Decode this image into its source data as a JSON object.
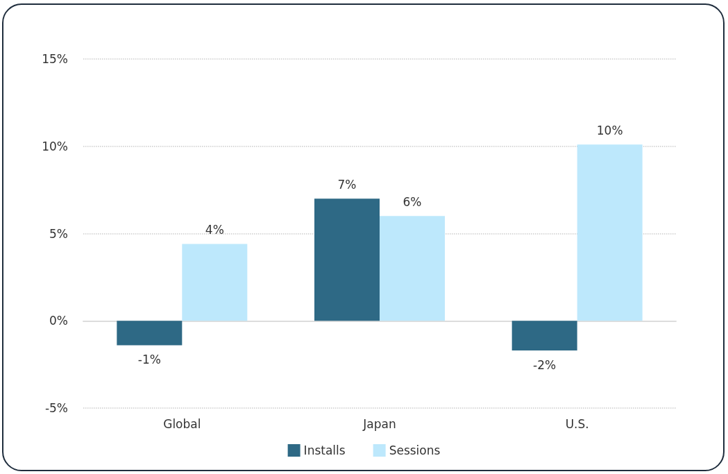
{
  "chart_data": {
    "type": "bar",
    "categories": [
      "Global",
      "Japan",
      "U.S."
    ],
    "series": [
      {
        "name": "Installs",
        "color": "#2e6985",
        "values": [
          -1.4,
          7.0,
          -1.7
        ],
        "value_labels": [
          "-1%",
          "7%",
          "-2%"
        ]
      },
      {
        "name": "Sessions",
        "color": "#bde8fc",
        "values": [
          4.4,
          6.0,
          10.1
        ],
        "value_labels": [
          "4%",
          "6%",
          "10%"
        ]
      }
    ],
    "ylim": [
      -5,
      15
    ],
    "yticks": [
      {
        "value": -5,
        "label": "-5%"
      },
      {
        "value": 0,
        "label": "0%"
      },
      {
        "value": 5,
        "label": "5%"
      },
      {
        "value": 10,
        "label": "10%"
      },
      {
        "value": 15,
        "label": "15%"
      }
    ],
    "grid": "y",
    "legend": "bottom"
  }
}
